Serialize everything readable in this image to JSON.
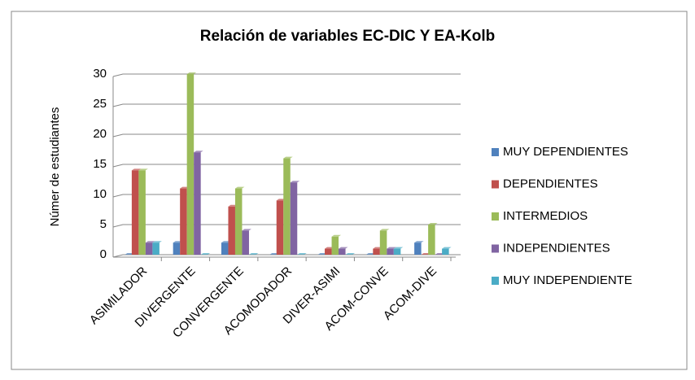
{
  "chart_data": {
    "type": "bar",
    "title": "Relación de variables EC-DIC Y EA-Kolb",
    "y_label": "Númer de estudiantes",
    "categories": [
      "ASIMILADOR",
      "DIVERGENTE",
      "CONVERGENTE",
      "ACOMODADOR",
      "DIVER-ASIMI",
      "ACOM-CONVE",
      "ACOM-DIVE"
    ],
    "series": [
      {
        "name": "MUY DEPENDIENTES",
        "color": "#4f81bd",
        "values": [
          0,
          2,
          2,
          0,
          0,
          0,
          2
        ]
      },
      {
        "name": "DEPENDIENTES",
        "color": "#c0504d",
        "values": [
          14,
          11,
          8,
          9,
          1,
          1,
          0
        ]
      },
      {
        "name": "INTERMEDIOS",
        "color": "#9bbb59",
        "values": [
          14,
          30,
          11,
          16,
          3,
          4,
          5
        ]
      },
      {
        "name": "INDEPENDIENTES",
        "color": "#8064a2",
        "values": [
          2,
          17,
          4,
          12,
          1,
          1,
          0
        ]
      },
      {
        "name": "MUY INDEPENDIENTE",
        "color": "#4bacc6",
        "values": [
          2,
          0,
          0,
          0,
          0,
          1,
          1
        ]
      }
    ],
    "ylim": [
      0,
      30
    ],
    "yticks": [
      0,
      5,
      10,
      15,
      20,
      25,
      30
    ],
    "grid": true,
    "legend": "right"
  }
}
